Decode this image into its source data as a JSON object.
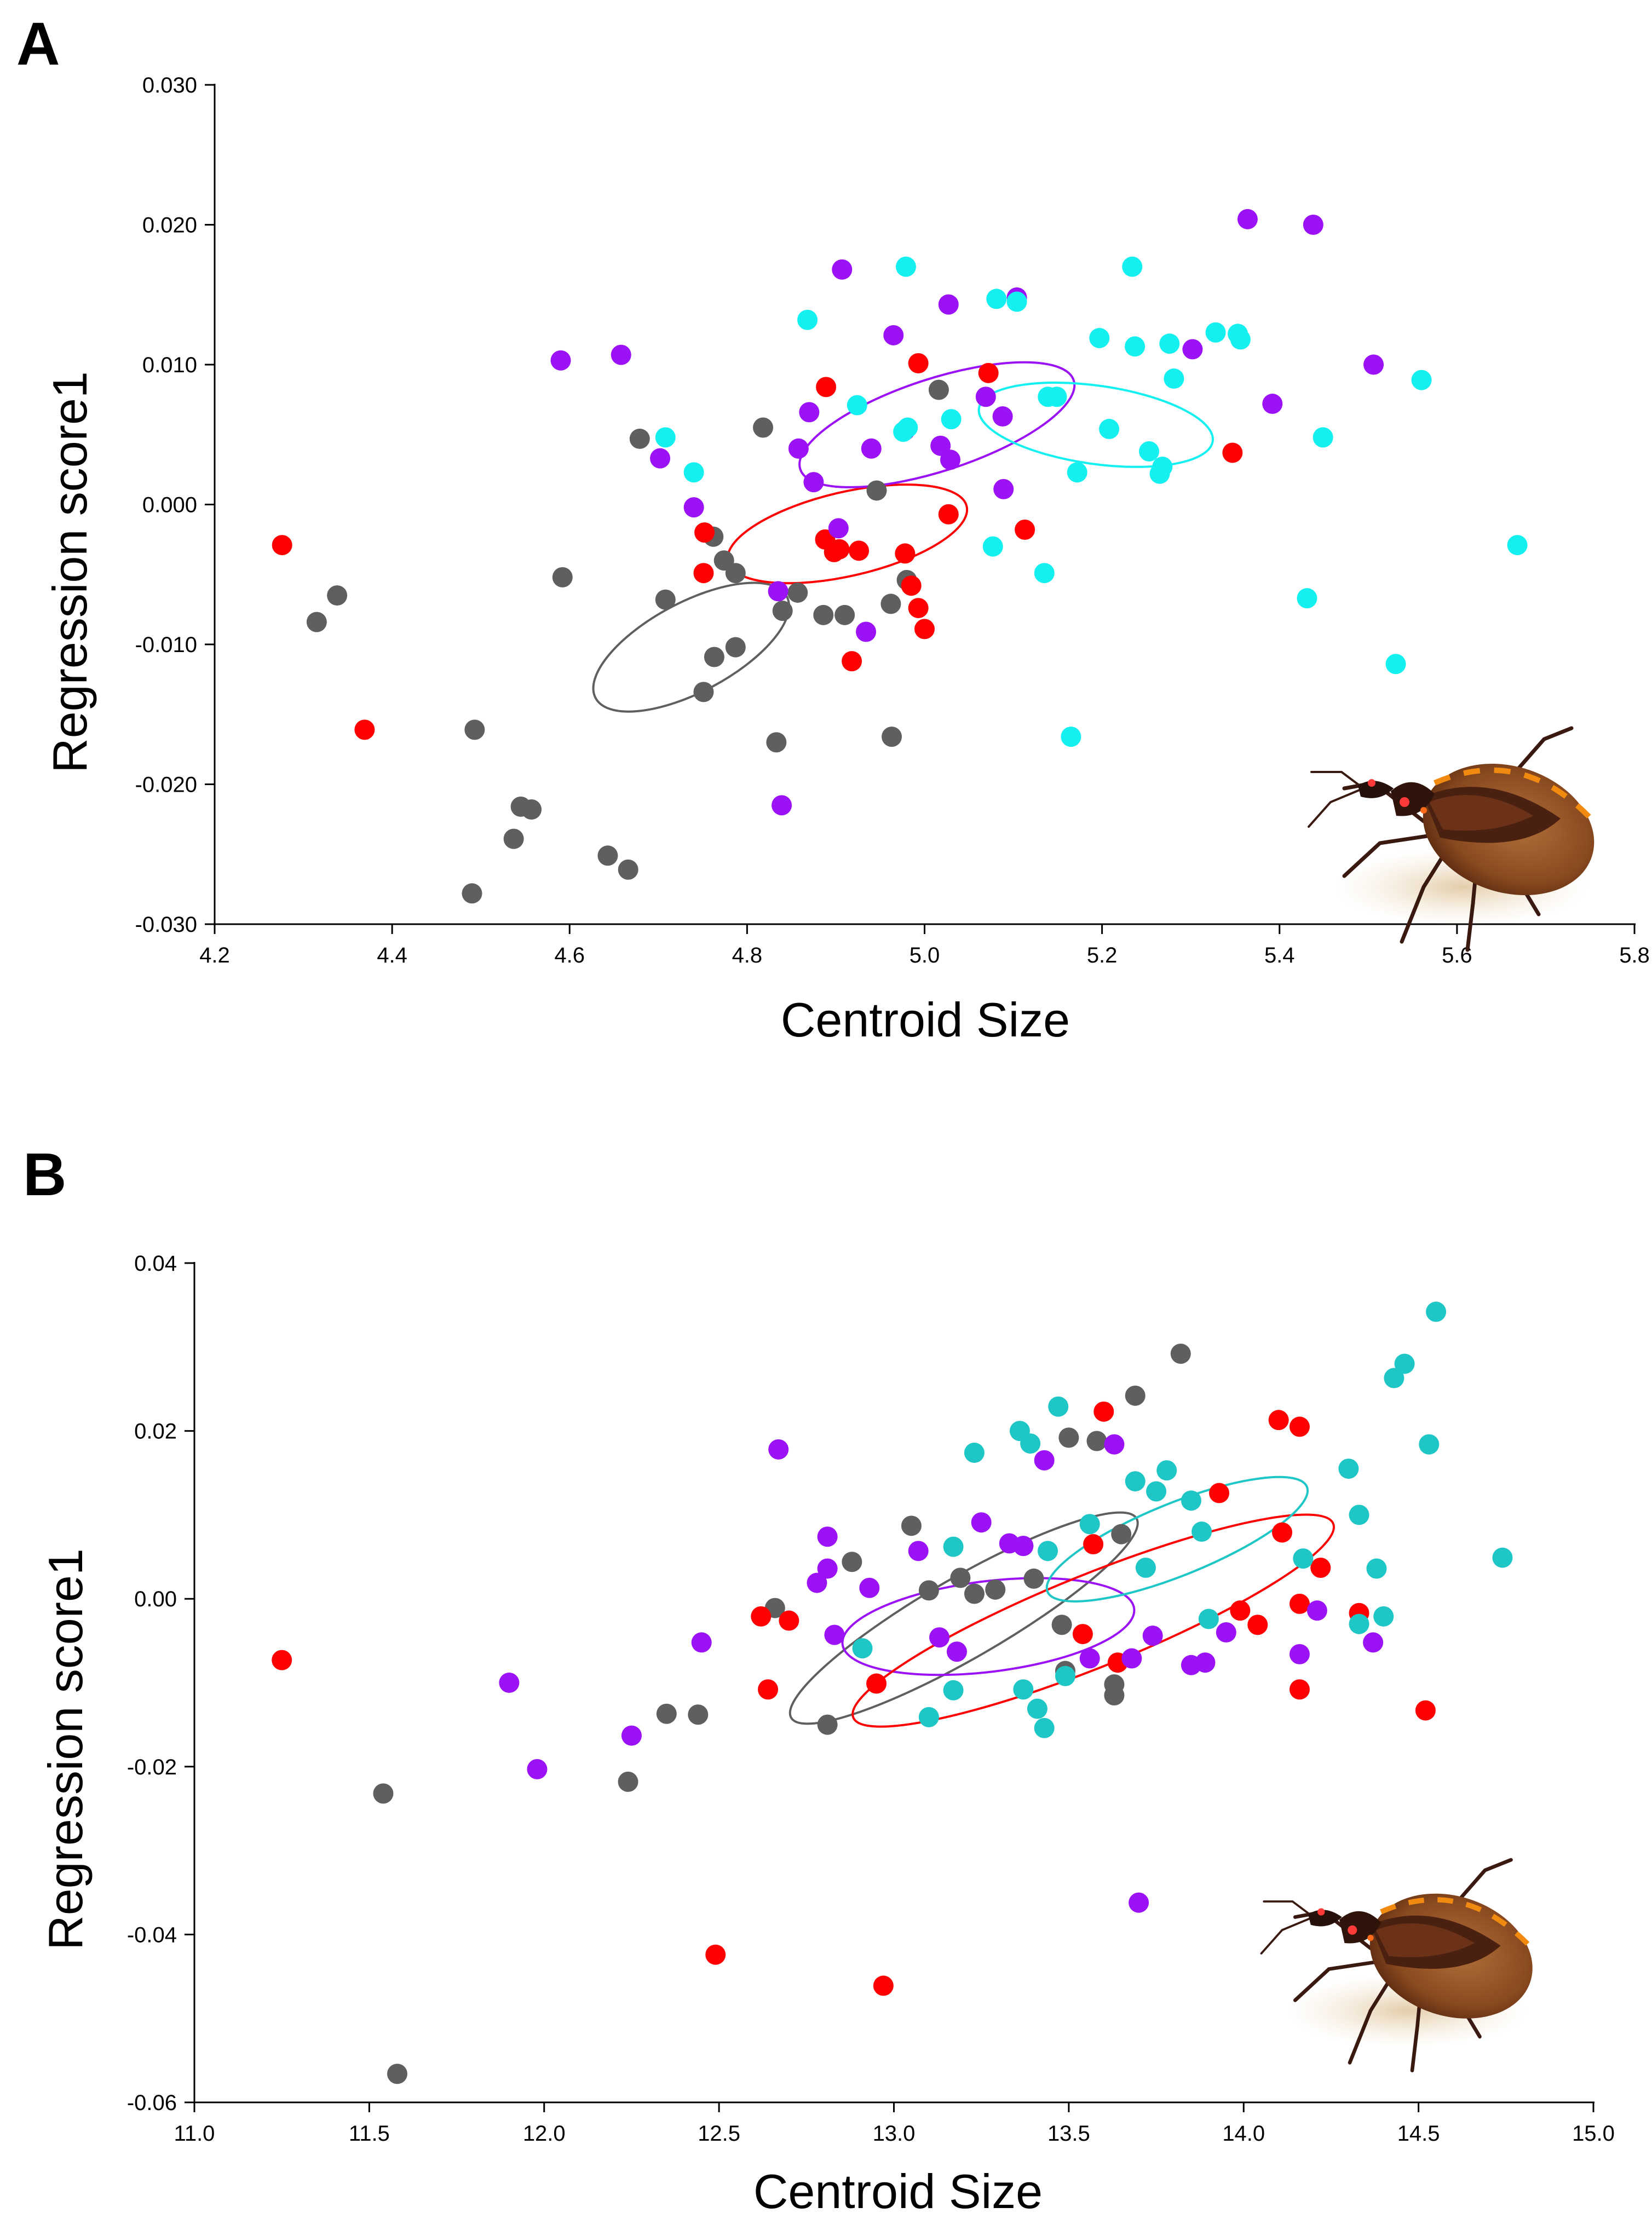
{
  "figure": {
    "group_colors": {
      "gray": "#5f5f5f",
      "red": "#ff0000",
      "purple": "#9a12f5",
      "cyan_A": "#14f0f0",
      "cyan_B": "#1ec6c6"
    },
    "bug_icon": "triatomine-bug-photo"
  },
  "chart_data": [
    {
      "panel_label": "A",
      "type": "scatter",
      "xlabel": "Centroid Size",
      "ylabel": "Regression score1",
      "xlim": [
        4.2,
        5.8
      ],
      "ylim": [
        -0.03,
        0.03
      ],
      "xticks": [
        "4.2",
        "4.4",
        "4.6",
        "4.8",
        "5.0",
        "5.2",
        "5.4",
        "5.6",
        "5.8"
      ],
      "xtick_values": [
        4.2,
        4.4,
        4.6,
        4.8,
        5.0,
        5.2,
        5.4,
        5.6,
        5.8
      ],
      "yticks": [
        "0.030",
        "0.020",
        "0.010",
        "0.000",
        "-0.010",
        "-0.020",
        "-0.030"
      ],
      "ytick_values": [
        0.03,
        0.02,
        0.01,
        0.0,
        -0.01,
        -0.02,
        -0.03
      ],
      "series": [
        {
          "name": "gray",
          "color": "#5f5f5f",
          "points": [
            [
              4.315,
              -0.0084
            ],
            [
              4.338,
              -0.0065
            ],
            [
              4.493,
              -0.0161
            ],
            [
              4.545,
              -0.0216
            ],
            [
              4.557,
              -0.0218
            ],
            [
              4.537,
              -0.0239
            ],
            [
              4.49,
              -0.0278
            ],
            [
              4.643,
              -0.0251
            ],
            [
              4.666,
              -0.0261
            ],
            [
              4.592,
              -0.0052
            ],
            [
              4.679,
              0.0047
            ],
            [
              4.708,
              -0.0068
            ],
            [
              4.762,
              -0.0023
            ],
            [
              4.774,
              -0.004
            ],
            [
              4.787,
              -0.0049
            ],
            [
              4.763,
              -0.0109
            ],
            [
              4.787,
              -0.0102
            ],
            [
              4.751,
              -0.0134
            ],
            [
              4.818,
              0.0055
            ],
            [
              4.84,
              -0.0076
            ],
            [
              4.857,
              -0.0063
            ],
            [
              4.886,
              -0.0079
            ],
            [
              4.91,
              -0.0079
            ],
            [
              4.946,
              0.001
            ],
            [
              4.962,
              -0.0071
            ],
            [
              4.98,
              -0.0054
            ],
            [
              5.016,
              0.0082
            ],
            [
              4.833,
              -0.017
            ],
            [
              4.963,
              -0.0166
            ]
          ]
        },
        {
          "name": "red",
          "color": "#ff0000",
          "points": [
            [
              4.276,
              -0.0029
            ],
            [
              4.369,
              -0.0161
            ],
            [
              4.752,
              -0.002
            ],
            [
              4.751,
              -0.0049
            ],
            [
              4.889,
              0.0084
            ],
            [
              4.888,
              -0.0025
            ],
            [
              4.898,
              -0.0034
            ],
            [
              4.904,
              -0.0032
            ],
            [
              4.926,
              -0.0033
            ],
            [
              4.918,
              -0.0112
            ],
            [
              4.978,
              -0.0035
            ],
            [
              4.985,
              -0.0058
            ],
            [
              4.993,
              0.0101
            ],
            [
              4.993,
              -0.0074
            ],
            [
              5.0,
              -0.0089
            ],
            [
              5.027,
              -0.0007
            ],
            [
              5.072,
              0.0094
            ],
            [
              5.113,
              -0.0018
            ],
            [
              5.347,
              0.0037
            ]
          ]
        },
        {
          "name": "purple",
          "color": "#9a12f5",
          "points": [
            [
              4.59,
              0.0103
            ],
            [
              4.658,
              0.0107
            ],
            [
              4.702,
              0.0033
            ],
            [
              4.74,
              -0.0002
            ],
            [
              4.835,
              -0.0062
            ],
            [
              4.858,
              0.004
            ],
            [
              4.87,
              0.0066
            ],
            [
              4.875,
              0.0016
            ],
            [
              4.839,
              -0.0215
            ],
            [
              4.903,
              -0.0017
            ],
            [
              4.907,
              0.0168
            ],
            [
              4.934,
              -0.0091
            ],
            [
              4.94,
              0.004
            ],
            [
              4.965,
              0.0121
            ],
            [
              4.978,
              0.0053
            ],
            [
              5.018,
              0.0042
            ],
            [
              5.027,
              0.0143
            ],
            [
              5.029,
              0.0032
            ],
            [
              5.069,
              0.0077
            ],
            [
              5.088,
              0.0063
            ],
            [
              5.089,
              0.0011
            ],
            [
              5.104,
              0.0148
            ],
            [
              5.302,
              0.0111
            ],
            [
              5.364,
              0.0204
            ],
            [
              5.392,
              0.0072
            ],
            [
              5.438,
              0.02
            ],
            [
              5.506,
              0.01
            ]
          ]
        },
        {
          "name": "cyan",
          "color": "#14f0f0",
          "points": [
            [
              4.708,
              0.0048
            ],
            [
              4.74,
              0.0023
            ],
            [
              4.868,
              0.0132
            ],
            [
              4.924,
              0.0071
            ],
            [
              4.976,
              0.0052
            ],
            [
              4.979,
              0.017
            ],
            [
              4.981,
              0.0055
            ],
            [
              5.03,
              0.0061
            ],
            [
              5.077,
              -0.003
            ],
            [
              5.081,
              0.0147
            ],
            [
              5.104,
              0.0145
            ],
            [
              5.135,
              -0.0049
            ],
            [
              5.139,
              0.0077
            ],
            [
              5.149,
              0.0077
            ],
            [
              5.165,
              -0.0166
            ],
            [
              5.172,
              0.0023
            ],
            [
              5.197,
              0.0119
            ],
            [
              5.208,
              0.0054
            ],
            [
              5.234,
              0.017
            ],
            [
              5.237,
              0.0113
            ],
            [
              5.253,
              0.0038
            ],
            [
              5.265,
              0.0022
            ],
            [
              5.268,
              0.0027
            ],
            [
              5.276,
              0.0115
            ],
            [
              5.281,
              0.009
            ],
            [
              5.328,
              0.0123
            ],
            [
              5.353,
              0.0122
            ],
            [
              5.356,
              0.0118
            ],
            [
              5.431,
              -0.0067
            ],
            [
              5.449,
              0.0048
            ],
            [
              5.531,
              -0.0114
            ],
            [
              5.56,
              0.0089
            ],
            [
              5.668,
              -0.0029
            ]
          ]
        }
      ],
      "ellipses": [
        {
          "name": "gray",
          "color": "#5f5f5f",
          "cx": 4.737,
          "cy": -0.0102,
          "rx": 0.122,
          "ry": 0.0032,
          "angle": -28
        },
        {
          "name": "red",
          "color": "#ff0000",
          "cx": 4.913,
          "cy": -0.0021,
          "rx": 0.138,
          "ry": 0.003,
          "angle": -13
        },
        {
          "name": "purple",
          "color": "#9a12f5",
          "cx": 5.014,
          "cy": 0.0057,
          "rx": 0.162,
          "ry": 0.0033,
          "angle": -18
        },
        {
          "name": "cyan",
          "color": "#14f0f0",
          "cx": 5.193,
          "cy": 0.0057,
          "rx": 0.133,
          "ry": 0.0028,
          "angle": 8
        }
      ],
      "icon": "triatomine-bug-photo"
    },
    {
      "panel_label": "B",
      "type": "scatter",
      "xlabel": "Centroid Size",
      "ylabel": "Regression score1",
      "xlim": [
        11.0,
        15.0
      ],
      "ylim": [
        -0.06,
        0.04
      ],
      "xticks": [
        "11.0",
        "11.5",
        "12.0",
        "12.5",
        "13.0",
        "13.5",
        "14.0",
        "14.5",
        "15.0"
      ],
      "xtick_values": [
        11.0,
        11.5,
        12.0,
        12.5,
        13.0,
        13.5,
        14.0,
        14.5,
        15.0
      ],
      "yticks": [
        "0.04",
        "0.02",
        "0.00",
        "-0.02",
        "-0.04",
        "-0.06"
      ],
      "ytick_values": [
        0.04,
        0.02,
        0.0,
        -0.02,
        -0.04,
        -0.06
      ],
      "series": [
        {
          "name": "gray",
          "color": "#5f5f5f",
          "points": [
            [
              11.54,
              -0.0232
            ],
            [
              11.58,
              -0.0566
            ],
            [
              12.24,
              -0.0218
            ],
            [
              12.35,
              -0.0137
            ],
            [
              12.44,
              -0.0138
            ],
            [
              12.66,
              -0.0011
            ],
            [
              12.81,
              -0.015
            ],
            [
              12.88,
              0.0044
            ],
            [
              13.05,
              0.0087
            ],
            [
              13.1,
              0.001
            ],
            [
              13.19,
              0.0025
            ],
            [
              13.23,
              0.0006
            ],
            [
              13.29,
              0.0011
            ],
            [
              13.37,
              0.0063
            ],
            [
              13.4,
              0.0024
            ],
            [
              13.48,
              -0.0031
            ],
            [
              13.49,
              -0.0086
            ],
            [
              13.58,
              0.0188
            ],
            [
              13.63,
              -0.0102
            ],
            [
              13.63,
              -0.0115
            ],
            [
              13.65,
              0.0077
            ],
            [
              13.69,
              0.0242
            ],
            [
              13.82,
              0.0292
            ],
            [
              13.5,
              0.0192
            ]
          ]
        },
        {
          "name": "red",
          "color": "#ff0000",
          "points": [
            [
              11.25,
              -0.0073
            ],
            [
              12.49,
              -0.0424
            ],
            [
              12.62,
              -0.0021
            ],
            [
              12.64,
              -0.0108
            ],
            [
              12.7,
              -0.0026
            ],
            [
              12.95,
              -0.0101
            ],
            [
              12.97,
              -0.0461
            ],
            [
              13.54,
              -0.0042
            ],
            [
              13.57,
              0.0065
            ],
            [
              13.6,
              0.0223
            ],
            [
              13.64,
              -0.0076
            ],
            [
              13.93,
              0.0126
            ],
            [
              13.99,
              -0.0014
            ],
            [
              14.04,
              -0.0031
            ],
            [
              14.1,
              0.0213
            ],
            [
              14.11,
              0.0079
            ],
            [
              14.16,
              0.0205
            ],
            [
              14.16,
              -0.0006
            ],
            [
              14.16,
              -0.0108
            ],
            [
              14.22,
              0.0037
            ],
            [
              14.33,
              -0.0017
            ],
            [
              14.52,
              -0.0133
            ]
          ]
        },
        {
          "name": "purple",
          "color": "#9a12f5",
          "points": [
            [
              11.9,
              -0.01
            ],
            [
              11.98,
              -0.0203
            ],
            [
              12.25,
              -0.0163
            ],
            [
              12.45,
              -0.0052
            ],
            [
              12.67,
              0.0178
            ],
            [
              12.78,
              0.0019
            ],
            [
              12.81,
              0.0074
            ],
            [
              12.81,
              0.0036
            ],
            [
              12.83,
              -0.0043
            ],
            [
              12.93,
              0.0013
            ],
            [
              13.07,
              0.0057
            ],
            [
              13.13,
              -0.0046
            ],
            [
              13.18,
              -0.0063
            ],
            [
              13.25,
              0.0091
            ],
            [
              13.33,
              0.0066
            ],
            [
              13.37,
              0.0063
            ],
            [
              13.43,
              0.0165
            ],
            [
              13.56,
              -0.0071
            ],
            [
              13.63,
              0.0184
            ],
            [
              13.68,
              -0.0071
            ],
            [
              13.74,
              -0.0044
            ],
            [
              13.85,
              -0.0079
            ],
            [
              13.89,
              -0.0076
            ],
            [
              13.95,
              -0.004
            ],
            [
              13.7,
              -0.0362
            ],
            [
              14.16,
              -0.0066
            ],
            [
              14.21,
              -0.0014
            ],
            [
              14.37,
              -0.0052
            ]
          ]
        },
        {
          "name": "cyan",
          "color": "#1ec6c6",
          "points": [
            [
              12.91,
              -0.0059
            ],
            [
              13.1,
              -0.0141
            ],
            [
              13.17,
              0.0062
            ],
            [
              13.17,
              -0.0109
            ],
            [
              13.23,
              0.0174
            ],
            [
              13.36,
              0.02
            ],
            [
              13.37,
              -0.0108
            ],
            [
              13.39,
              0.0185
            ],
            [
              13.41,
              -0.0131
            ],
            [
              13.43,
              -0.0154
            ],
            [
              13.44,
              0.0057
            ],
            [
              13.47,
              0.0229
            ],
            [
              13.49,
              -0.0092
            ],
            [
              13.56,
              0.0089
            ],
            [
              13.69,
              0.014
            ],
            [
              13.72,
              0.0037
            ],
            [
              13.75,
              0.0128
            ],
            [
              13.78,
              0.0153
            ],
            [
              13.85,
              0.0117
            ],
            [
              13.88,
              0.008
            ],
            [
              13.9,
              -0.0024
            ],
            [
              14.17,
              0.0048
            ],
            [
              14.3,
              0.0155
            ],
            [
              14.33,
              0.01
            ],
            [
              14.33,
              -0.003
            ],
            [
              14.38,
              0.0036
            ],
            [
              14.4,
              -0.0021
            ],
            [
              14.43,
              0.0263
            ],
            [
              14.46,
              0.028
            ],
            [
              14.53,
              0.0184
            ],
            [
              14.55,
              0.0342
            ],
            [
              14.74,
              0.0049
            ]
          ]
        }
      ],
      "ellipses": [
        {
          "name": "gray",
          "color": "#5f5f5f",
          "cx": 13.2,
          "cy": -0.0023,
          "rx": 0.57,
          "ry": 0.0048,
          "angle": -30
        },
        {
          "name": "purple",
          "color": "#9a12f5",
          "cx": 13.27,
          "cy": -0.0033,
          "rx": 0.42,
          "ry": 0.0054,
          "angle": -7
        },
        {
          "name": "red",
          "color": "#ff0000",
          "cx": 13.57,
          "cy": -0.0026,
          "rx": 0.74,
          "ry": 0.0055,
          "angle": -22
        },
        {
          "name": "cyan",
          "color": "#1ec6c6",
          "cx": 13.81,
          "cy": 0.0071,
          "rx": 0.4,
          "ry": 0.0043,
          "angle": -22
        }
      ],
      "icon": "triatomine-bug-photo"
    }
  ]
}
